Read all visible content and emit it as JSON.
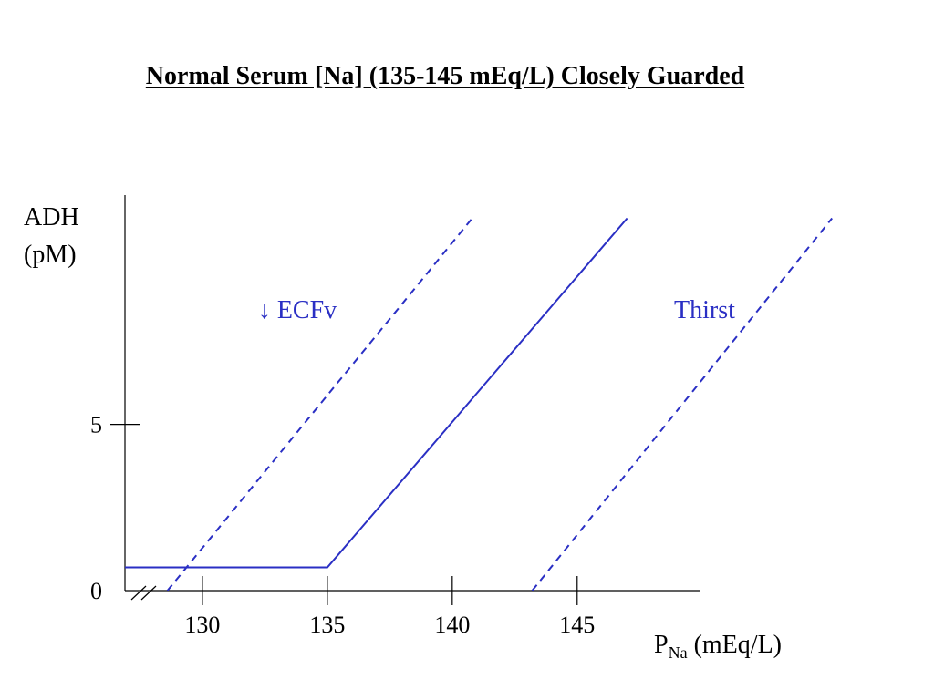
{
  "slide": {
    "title": "Normal Serum [Na] (135-145 mEq/L) Closely Guarded"
  },
  "colors": {
    "series": "#2a2fc4",
    "axis": "#000000"
  },
  "chart_data": {
    "type": "line",
    "title": "Normal Serum [Na] (135-145 mEq/L) Closely Guarded",
    "xlabel_main": "P",
    "xlabel_sub": "Na",
    "xlabel_unit": " (mEq/L)",
    "ylabel_line1": "ADH",
    "ylabel_line2": "(pM)",
    "xlim": [
      126.9,
      149.9
    ],
    "ylim": [
      0,
      11.9
    ],
    "x_axis_break": true,
    "grid": false,
    "x_ticks": [
      130,
      135,
      140,
      145
    ],
    "x_tick_labels": [
      "130",
      "135",
      "140",
      "145"
    ],
    "y_ticks": [
      0,
      5
    ],
    "y_tick_labels": [
      "0",
      "5"
    ],
    "series": [
      {
        "name": "",
        "style": "solid",
        "x": [
          126.9,
          135,
          147
        ],
        "y": [
          0.7,
          0.7,
          11.2
        ]
      },
      {
        "name": "↓ ECFv",
        "style": "dashed",
        "x": [
          128.6,
          140.8
        ],
        "y": [
          0,
          11.2
        ]
      },
      {
        "name": "Thirst",
        "style": "dashed",
        "x": [
          143.2,
          155.2
        ],
        "y": [
          0,
          11.2
        ]
      }
    ],
    "annotations": [
      {
        "text": "↓ ECFv",
        "x": 133.8,
        "y": 8.2,
        "series": 1
      },
      {
        "text": "Thirst",
        "x": 150.1,
        "y": 8.2,
        "series": 2
      }
    ]
  }
}
